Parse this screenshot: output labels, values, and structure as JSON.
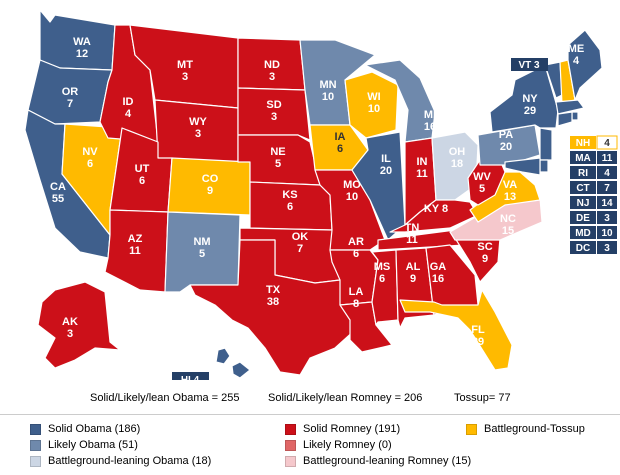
{
  "colors": {
    "solid_obama": "#3f5f8c",
    "likely_obama": "#6f89ac",
    "lean_obama": "#ccd6e4",
    "tossup": "#ffba00",
    "lean_romney": "#f5c8cc",
    "likely_romney": "#e06666",
    "solid_romney": "#cc1019",
    "box_tossup_text": "#ffffff",
    "box_obama": "#243f66"
  },
  "states": {
    "WA": {
      "abbr": "WA",
      "ev": "12",
      "rating": "solid_obama"
    },
    "OR": {
      "abbr": "OR",
      "ev": "7",
      "rating": "solid_obama"
    },
    "CA": {
      "abbr": "CA",
      "ev": "55",
      "rating": "solid_obama"
    },
    "NV": {
      "abbr": "NV",
      "ev": "6",
      "rating": "tossup"
    },
    "ID": {
      "abbr": "ID",
      "ev": "4",
      "rating": "solid_romney"
    },
    "MT": {
      "abbr": "MT",
      "ev": "3",
      "rating": "solid_romney"
    },
    "WY": {
      "abbr": "WY",
      "ev": "3",
      "rating": "solid_romney"
    },
    "UT": {
      "abbr": "UT",
      "ev": "6",
      "rating": "solid_romney"
    },
    "AZ": {
      "abbr": "AZ",
      "ev": "11",
      "rating": "solid_romney"
    },
    "CO": {
      "abbr": "CO",
      "ev": "9",
      "rating": "tossup"
    },
    "NM": {
      "abbr": "NM",
      "ev": "5",
      "rating": "likely_obama"
    },
    "ND": {
      "abbr": "ND",
      "ev": "3",
      "rating": "solid_romney"
    },
    "SD": {
      "abbr": "SD",
      "ev": "3",
      "rating": "solid_romney"
    },
    "NE": {
      "abbr": "NE",
      "ev": "5",
      "rating": "solid_romney"
    },
    "KS": {
      "abbr": "KS",
      "ev": "6",
      "rating": "solid_romney"
    },
    "OK": {
      "abbr": "OK",
      "ev": "7",
      "rating": "solid_romney"
    },
    "TX": {
      "abbr": "TX",
      "ev": "38",
      "rating": "solid_romney"
    },
    "MN": {
      "abbr": "MN",
      "ev": "10",
      "rating": "likely_obama"
    },
    "IA": {
      "abbr": "IA",
      "ev": "6",
      "rating": "tossup"
    },
    "MO": {
      "abbr": "MO",
      "ev": "10",
      "rating": "solid_romney"
    },
    "AR": {
      "abbr": "AR",
      "ev": "6",
      "rating": "solid_romney"
    },
    "LA": {
      "abbr": "LA",
      "ev": "8",
      "rating": "solid_romney"
    },
    "WI": {
      "abbr": "WI",
      "ev": "10",
      "rating": "tossup"
    },
    "IL": {
      "abbr": "IL",
      "ev": "20",
      "rating": "solid_obama"
    },
    "MI": {
      "abbr": "MI",
      "ev": "16",
      "rating": "likely_obama"
    },
    "IN": {
      "abbr": "IN",
      "ev": "11",
      "rating": "solid_romney"
    },
    "OH": {
      "abbr": "OH",
      "ev": "18",
      "rating": "lean_obama"
    },
    "KY": {
      "abbr": "KY",
      "ev": "8",
      "rating": "solid_romney"
    },
    "TN": {
      "abbr": "TN",
      "ev": "11",
      "rating": "solid_romney"
    },
    "MS": {
      "abbr": "MS",
      "ev": "6",
      "rating": "solid_romney"
    },
    "AL": {
      "abbr": "AL",
      "ev": "9",
      "rating": "solid_romney"
    },
    "GA": {
      "abbr": "GA",
      "ev": "16",
      "rating": "solid_romney"
    },
    "FL": {
      "abbr": "FL",
      "ev": "29",
      "rating": "tossup"
    },
    "SC": {
      "abbr": "SC",
      "ev": "9",
      "rating": "solid_romney"
    },
    "NC": {
      "abbr": "NC",
      "ev": "15",
      "rating": "lean_romney"
    },
    "VA": {
      "abbr": "VA",
      "ev": "13",
      "rating": "tossup"
    },
    "WV": {
      "abbr": "WV",
      "ev": "5",
      "rating": "solid_romney"
    },
    "PA": {
      "abbr": "PA",
      "ev": "20",
      "rating": "likely_obama"
    },
    "NY": {
      "abbr": "NY",
      "ev": "29",
      "rating": "solid_obama"
    },
    "ME": {
      "abbr": "ME",
      "ev": "4",
      "rating": "solid_obama"
    },
    "AK": {
      "abbr": "AK",
      "ev": "3",
      "rating": "solid_romney"
    },
    "HI": {
      "abbr": "HI",
      "ev": "4",
      "rating": "solid_obama"
    }
  },
  "small_states": [
    {
      "abbr": "VT",
      "ev": "3",
      "rating": "solid_obama"
    },
    {
      "abbr": "NH",
      "ev": "4",
      "rating": "tossup"
    },
    {
      "abbr": "MA",
      "ev": "11",
      "rating": "solid_obama"
    },
    {
      "abbr": "RI",
      "ev": "4",
      "rating": "solid_obama"
    },
    {
      "abbr": "CT",
      "ev": "7",
      "rating": "solid_obama"
    },
    {
      "abbr": "NJ",
      "ev": "14",
      "rating": "solid_obama"
    },
    {
      "abbr": "DE",
      "ev": "3",
      "rating": "solid_obama"
    },
    {
      "abbr": "MD",
      "ev": "10",
      "rating": "solid_obama"
    },
    {
      "abbr": "DC",
      "ev": "3",
      "rating": "solid_obama"
    }
  ],
  "totals": {
    "obama": "Solid/Likely/lean Obama = 255",
    "romney": "Solid/Likely/lean Romney = 206",
    "tossup": "Tossup= 77"
  },
  "legend": [
    {
      "label": "Solid Obama  (186)",
      "rating": "solid_obama"
    },
    {
      "label": "Likely Obama (51)",
      "rating": "likely_obama"
    },
    {
      "label": "Battleground-leaning Obama (18)",
      "rating": "lean_obama"
    },
    {
      "label": "Solid Romney (191)",
      "rating": "solid_romney"
    },
    {
      "label": "Likely Romney (0)",
      "rating": "likely_romney"
    },
    {
      "label": "Battleground-leaning Romney (15)",
      "rating": "lean_romney"
    },
    {
      "label": "Battleground-Tossup",
      "rating": "tossup"
    }
  ]
}
